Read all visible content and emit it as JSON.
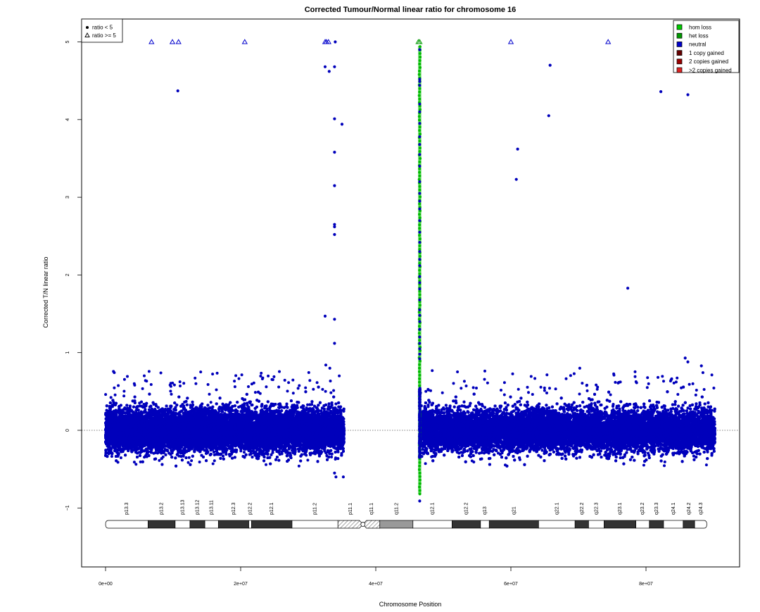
{
  "chart_data": {
    "type": "scatter",
    "title": "Corrected Tumour/Normal linear ratio for chromosome  16",
    "xlabel": "Chromosome Position",
    "ylabel": "Corrected T/N linear ratio",
    "xlim": [
      -4000000,
      94000000
    ],
    "ylim": [
      -1.75,
      5.25
    ],
    "x_ticks": [
      0,
      20000000,
      40000000,
      60000000,
      80000000
    ],
    "x_tick_labels": [
      "0e+00",
      "2e+07",
      "4e+07",
      "6e+07",
      "8e+07"
    ],
    "y_ticks": [
      -1,
      0,
      1,
      2,
      3,
      4,
      5
    ],
    "y_tick_labels": [
      "−1",
      "0",
      "1",
      "2",
      "3",
      "4",
      "5"
    ],
    "reference_line": 0,
    "shape_legend": {
      "placement": "top-left",
      "entries": [
        {
          "symbol": "filled-circle",
          "label": "ratio < 5"
        },
        {
          "symbol": "open-triangle",
          "label": "ratio >= 5"
        }
      ]
    },
    "color_legend": {
      "placement": "top-right",
      "entries": [
        {
          "label": "hom loss",
          "color": "#00cc00"
        },
        {
          "label": "het loss",
          "color": "#009900"
        },
        {
          "label": "neutral",
          "color": "#0000cc"
        },
        {
          "label": "1 copy gained",
          "color": "#660000"
        },
        {
          "label": "2 copies gained",
          "color": "#990000"
        },
        {
          "label": ">2 copies gained",
          "color": "#dd2222"
        }
      ]
    },
    "colors": {
      "neutral": "#0000bb",
      "loss": "#00bb00"
    },
    "dense_regions": [
      {
        "class": "neutral",
        "x_start": 0,
        "x_end": 35300000,
        "y_center": 0.0,
        "y_sd": 0.13
      },
      {
        "class": "neutral",
        "x_start": 46500000,
        "x_end": 90200000,
        "y_center": 0.0,
        "y_sd": 0.13
      }
    ],
    "outliers_ratio_ge_5": [
      {
        "x": 6800000,
        "class": "neutral"
      },
      {
        "x": 9900000,
        "class": "neutral"
      },
      {
        "x": 10800000,
        "class": "neutral"
      },
      {
        "x": 20600000,
        "class": "neutral"
      },
      {
        "x": 32500000,
        "class": "neutral"
      },
      {
        "x": 32700000,
        "class": "neutral"
      },
      {
        "x": 33000000,
        "class": "neutral"
      },
      {
        "x": 46300000,
        "class": "loss"
      },
      {
        "x": 46500000,
        "class": "loss"
      },
      {
        "x": 60000000,
        "class": "neutral"
      },
      {
        "x": 74400000,
        "class": "neutral"
      }
    ],
    "outliers": [
      {
        "x": 10700000,
        "y": 4.37,
        "class": "neutral"
      },
      {
        "x": 32500000,
        "y": 4.68,
        "class": "neutral"
      },
      {
        "x": 33100000,
        "y": 4.62,
        "class": "neutral"
      },
      {
        "x": 33900000,
        "y": 4.68,
        "class": "neutral"
      },
      {
        "x": 34000000,
        "y": 5.0,
        "class": "neutral"
      },
      {
        "x": 33900000,
        "y": 4.01,
        "class": "neutral"
      },
      {
        "x": 35000000,
        "y": 3.94,
        "class": "neutral"
      },
      {
        "x": 33900000,
        "y": 3.58,
        "class": "neutral"
      },
      {
        "x": 33900000,
        "y": 3.15,
        "class": "neutral"
      },
      {
        "x": 33900000,
        "y": 2.65,
        "class": "neutral"
      },
      {
        "x": 33900000,
        "y": 2.62,
        "class": "neutral"
      },
      {
        "x": 33900000,
        "y": 2.52,
        "class": "neutral"
      },
      {
        "x": 32500000,
        "y": 1.47,
        "class": "neutral"
      },
      {
        "x": 33900000,
        "y": 1.43,
        "class": "neutral"
      },
      {
        "x": 33900000,
        "y": 1.12,
        "class": "neutral"
      },
      {
        "x": 32600000,
        "y": 0.84,
        "class": "neutral"
      },
      {
        "x": 33200000,
        "y": 0.8,
        "class": "neutral"
      },
      {
        "x": 34100000,
        "y": -0.6,
        "class": "neutral"
      },
      {
        "x": 35200000,
        "y": -0.6,
        "class": "neutral"
      },
      {
        "x": 33900000,
        "y": -0.55,
        "class": "neutral"
      },
      {
        "x": 46500000,
        "y": 4.9,
        "class": "neutral"
      },
      {
        "x": 46500000,
        "y": -0.91,
        "class": "neutral"
      },
      {
        "x": 65800000,
        "y": 4.7,
        "class": "neutral"
      },
      {
        "x": 65600000,
        "y": 4.05,
        "class": "neutral"
      },
      {
        "x": 61000000,
        "y": 3.62,
        "class": "neutral"
      },
      {
        "x": 60800000,
        "y": 3.23,
        "class": "neutral"
      },
      {
        "x": 77300000,
        "y": 1.83,
        "class": "neutral"
      },
      {
        "x": 82200000,
        "y": 4.36,
        "class": "neutral"
      },
      {
        "x": 86200000,
        "y": 4.32,
        "class": "neutral"
      },
      {
        "x": 85800000,
        "y": 0.93,
        "class": "neutral"
      },
      {
        "x": 86200000,
        "y": 0.88,
        "class": "neutral"
      },
      {
        "x": 88200000,
        "y": 0.83,
        "class": "neutral"
      },
      {
        "x": 70200000,
        "y": 0.8,
        "class": "neutral"
      }
    ],
    "centromere_column": {
      "x": 46500000,
      "loss_y_range": [
        -0.82,
        4.95
      ],
      "neutral_y_values": [
        4.52,
        4.49,
        4.44,
        4.2,
        4.1,
        3.95,
        3.78,
        3.68,
        3.55,
        3.4,
        3.2,
        3.05,
        2.95,
        2.85,
        2.7,
        2.55,
        2.42,
        2.3,
        2.2,
        2.12,
        1.98,
        1.9,
        1.82,
        1.68,
        1.55,
        1.48,
        1.4,
        1.3,
        1.2,
        1.12,
        1.05,
        0.98,
        0.92
      ]
    },
    "ideogram": {
      "y": -1.21,
      "bands": [
        {
          "name": "p13.3",
          "start": 0,
          "end": 6300000,
          "stain": "gneg"
        },
        {
          "name": "p13.2",
          "start": 6300000,
          "end": 10300000,
          "stain": "gpos"
        },
        {
          "name": "p13.13",
          "start": 10300000,
          "end": 12500000,
          "stain": "gneg"
        },
        {
          "name": "p13.12",
          "start": 12500000,
          "end": 14700000,
          "stain": "gpos"
        },
        {
          "name": "p13.11",
          "start": 14700000,
          "end": 16700000,
          "stain": "gneg"
        },
        {
          "name": "p12.3",
          "start": 16700000,
          "end": 21200000,
          "stain": "gpos"
        },
        {
          "name": "p12.2",
          "start": 21200000,
          "end": 21600000,
          "stain": "gneg"
        },
        {
          "name": "p12.1",
          "start": 21600000,
          "end": 27600000,
          "stain": "gpos"
        },
        {
          "name": "p11.2",
          "start": 27600000,
          "end": 34400000,
          "stain": "gneg"
        },
        {
          "name": "p11.1",
          "start": 34400000,
          "end": 38100000,
          "stain": "acen"
        },
        {
          "name": "q11.1",
          "start": 38100000,
          "end": 40600000,
          "stain": "acen"
        },
        {
          "name": "q11.2",
          "start": 40600000,
          "end": 45500000,
          "stain": "gvar"
        },
        {
          "name": "q12.1",
          "start": 45500000,
          "end": 51300000,
          "stain": "gneg"
        },
        {
          "name": "q12.2",
          "start": 51300000,
          "end": 55500000,
          "stain": "gpos"
        },
        {
          "name": "q13",
          "start": 55500000,
          "end": 56800000,
          "stain": "gneg"
        },
        {
          "name": "q21",
          "start": 56800000,
          "end": 64100000,
          "stain": "gpos"
        },
        {
          "name": "q22.1",
          "start": 64100000,
          "end": 69500000,
          "stain": "gneg"
        },
        {
          "name": "q22.2",
          "start": 69500000,
          "end": 71500000,
          "stain": "gpos"
        },
        {
          "name": "q22.3",
          "start": 71500000,
          "end": 73800000,
          "stain": "gneg"
        },
        {
          "name": "q23.1",
          "start": 73800000,
          "end": 78500000,
          "stain": "gpos"
        },
        {
          "name": "q23.2",
          "start": 78500000,
          "end": 80500000,
          "stain": "gneg"
        },
        {
          "name": "q23.3",
          "start": 80500000,
          "end": 82600000,
          "stain": "gpos"
        },
        {
          "name": "q24.1",
          "start": 82600000,
          "end": 85500000,
          "stain": "gneg"
        },
        {
          "name": "q24.2",
          "start": 85500000,
          "end": 87200000,
          "stain": "gpos"
        },
        {
          "name": "q24.3",
          "start": 87200000,
          "end": 89000000,
          "stain": "gneg"
        }
      ]
    }
  }
}
